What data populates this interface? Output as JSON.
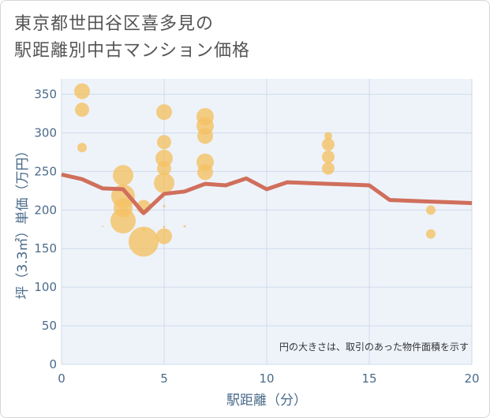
{
  "title_lines": [
    "東京都世田谷区喜多見の",
    "駅距離別中古マンション価格"
  ],
  "note": "円の大きさは、取引のあった物件面積を示す",
  "colors": {
    "bubble": "#f5c062",
    "line": "#d06f5c",
    "plot_bg": "#eef3fa",
    "grid": "#cfdbe9",
    "axis_text": "#4a6a8a"
  },
  "chart_data": {
    "type": "scatter",
    "title": "東京都世田谷区喜多見の駅距離別中古マンション価格",
    "xlabel": "駅距離（分）",
    "ylabel": "坪（3.3㎡）単価（万円）",
    "xlim": [
      0,
      20
    ],
    "ylim": [
      0,
      370
    ],
    "xticks": [
      0,
      5,
      10,
      15,
      20
    ],
    "yticks": [
      0,
      50,
      100,
      150,
      200,
      250,
      300,
      350
    ],
    "grid": true,
    "bubbles": [
      {
        "x": 1,
        "y": 354,
        "size": 10
      },
      {
        "x": 1,
        "y": 330,
        "size": 9
      },
      {
        "x": 1,
        "y": 281,
        "size": 6
      },
      {
        "x": 2,
        "y": 179,
        "size": 1
      },
      {
        "x": 3,
        "y": 245,
        "size": 13
      },
      {
        "x": 3,
        "y": 218,
        "size": 15
      },
      {
        "x": 3,
        "y": 203,
        "size": 12
      },
      {
        "x": 3,
        "y": 186,
        "size": 16
      },
      {
        "x": 4,
        "y": 204,
        "size": 9
      },
      {
        "x": 4,
        "y": 175,
        "size": 2
      },
      {
        "x": 4,
        "y": 159,
        "size": 19
      },
      {
        "x": 5,
        "y": 327,
        "size": 10
      },
      {
        "x": 5,
        "y": 288,
        "size": 9
      },
      {
        "x": 5,
        "y": 267,
        "size": 11
      },
      {
        "x": 5,
        "y": 254,
        "size": 9
      },
      {
        "x": 5,
        "y": 235,
        "size": 13
      },
      {
        "x": 5,
        "y": 205,
        "size": 1.5
      },
      {
        "x": 5,
        "y": 178,
        "size": 1.5
      },
      {
        "x": 5,
        "y": 166,
        "size": 10
      },
      {
        "x": 6,
        "y": 179,
        "size": 1.5
      },
      {
        "x": 7,
        "y": 321,
        "size": 11
      },
      {
        "x": 7,
        "y": 309,
        "size": 11
      },
      {
        "x": 7,
        "y": 296,
        "size": 10
      },
      {
        "x": 7,
        "y": 262,
        "size": 11
      },
      {
        "x": 7,
        "y": 249,
        "size": 10
      },
      {
        "x": 13,
        "y": 296,
        "size": 5
      },
      {
        "x": 13,
        "y": 285,
        "size": 8
      },
      {
        "x": 13,
        "y": 269,
        "size": 8
      },
      {
        "x": 13,
        "y": 254,
        "size": 8
      },
      {
        "x": 18,
        "y": 200,
        "size": 6
      },
      {
        "x": 18,
        "y": 169,
        "size": 6
      }
    ],
    "series": [
      {
        "x": [
          0,
          1,
          2,
          3,
          4,
          5,
          6,
          7,
          8,
          9,
          10,
          11,
          12,
          13,
          14,
          15,
          16,
          17,
          18,
          19,
          20
        ],
        "values": [
          246,
          240,
          228,
          227,
          196,
          221,
          224,
          234,
          232,
          241,
          227,
          236,
          235,
          234,
          233,
          232,
          213,
          212,
          211,
          210,
          209
        ]
      }
    ]
  }
}
